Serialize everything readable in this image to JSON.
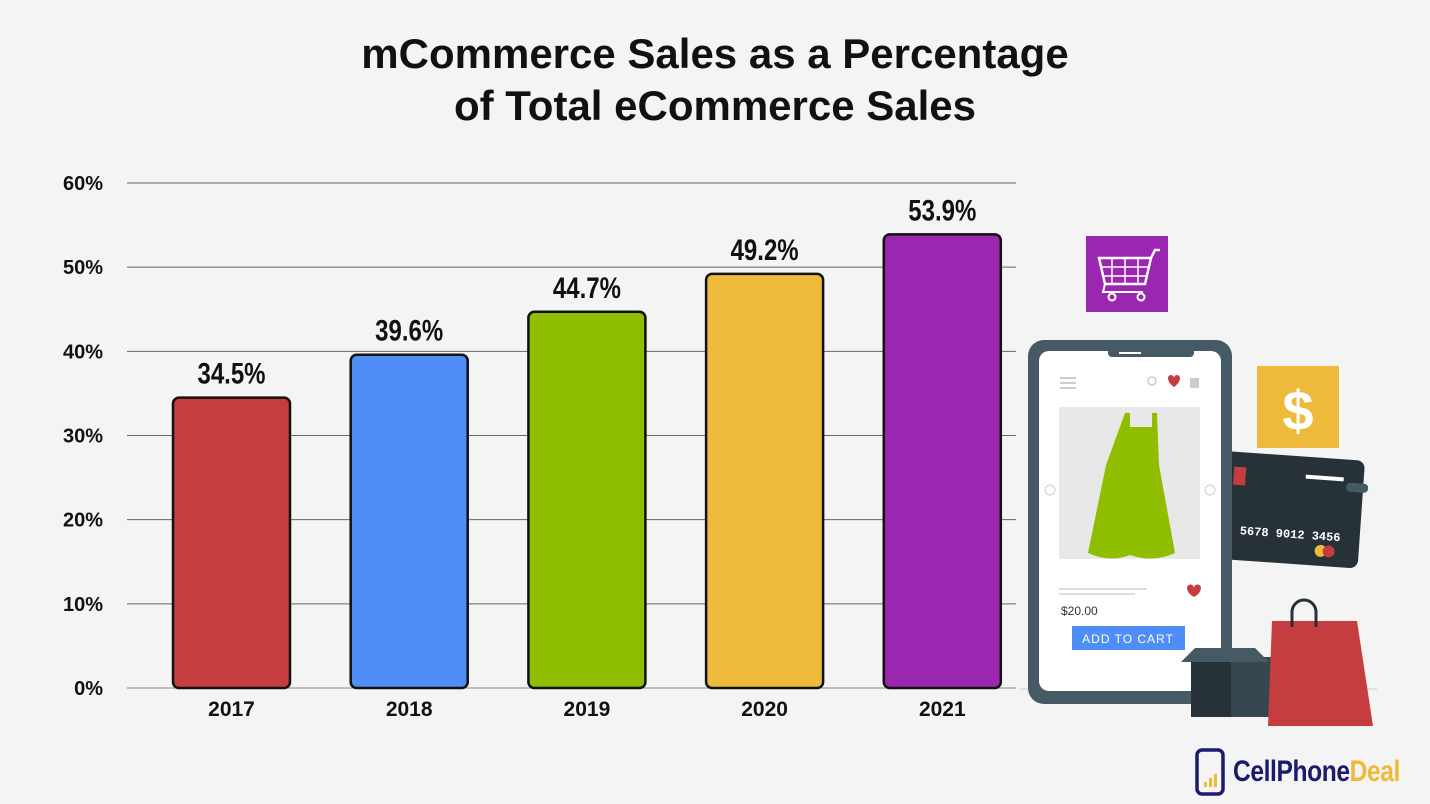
{
  "chart_data": {
    "type": "bar",
    "title_line1": "mCommerce Sales as a Percentage",
    "title_line2": "of Total eCommerce Sales",
    "categories": [
      "2017",
      "2018",
      "2019",
      "2020",
      "2021"
    ],
    "values": [
      34.5,
      39.6,
      44.7,
      49.2,
      53.9
    ],
    "value_labels": [
      "34.5%",
      "39.6%",
      "44.7%",
      "49.2%",
      "53.9%"
    ],
    "colors": [
      "#c63d3f",
      "#4f8ef7",
      "#8fbe00",
      "#eeba3c",
      "#9b27b0"
    ],
    "yticks": [
      0,
      10,
      20,
      30,
      40,
      50,
      60
    ],
    "ytick_labels": [
      "0%",
      "10%",
      "20%",
      "30%",
      "40%",
      "50%",
      "60%"
    ],
    "ylim": [
      0,
      60
    ],
    "xlabel": "",
    "ylabel": "",
    "grid": true
  },
  "illustration": {
    "price": "$20.00",
    "add_to_cart": "ADD TO CART",
    "card_number": "5678 9012 3456",
    "dollar_sign": "$"
  },
  "logo": {
    "part1": "CellPhone",
    "part2": "Deal"
  }
}
